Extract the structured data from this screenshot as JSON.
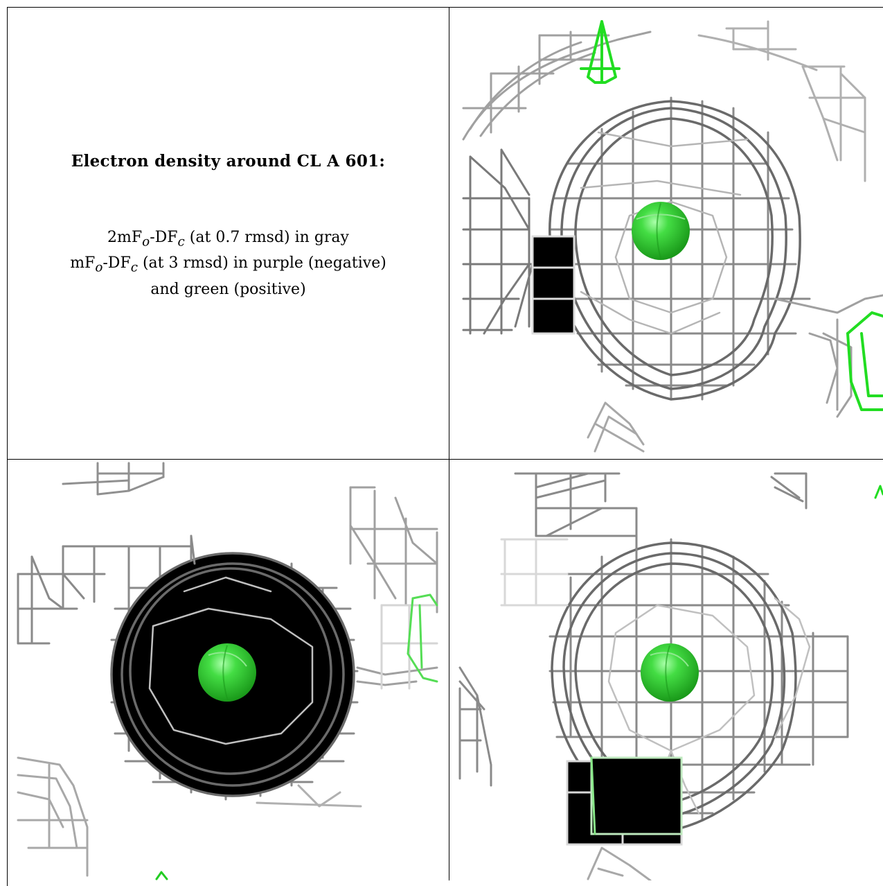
{
  "caption": {
    "title": "Electron density around CL A 601:",
    "line1_a": "2mF",
    "line1_sub_o": "o",
    "line1_b": "-DF",
    "line1_sub_c": "c",
    "line1_c": " (at 0.7 rmsd) in gray",
    "line2_a": "mF",
    "line2_sub_o": "o",
    "line2_b": "-DF",
    "line2_sub_c": "c",
    "line2_c": " (at 3 rmsd) in purple (negative)",
    "line3": "and green (positive)"
  },
  "colors": {
    "mesh_gray": "#9a9a9a",
    "mesh_dark": "#5a5a5a",
    "mesh_light": "#cfcfcf",
    "positive_green": "#22dd22",
    "atom_green": "#33cc33",
    "border": "#000000"
  },
  "views": [
    {
      "name": "view-top-right"
    },
    {
      "name": "view-bottom-left"
    },
    {
      "name": "view-bottom-right"
    }
  ]
}
